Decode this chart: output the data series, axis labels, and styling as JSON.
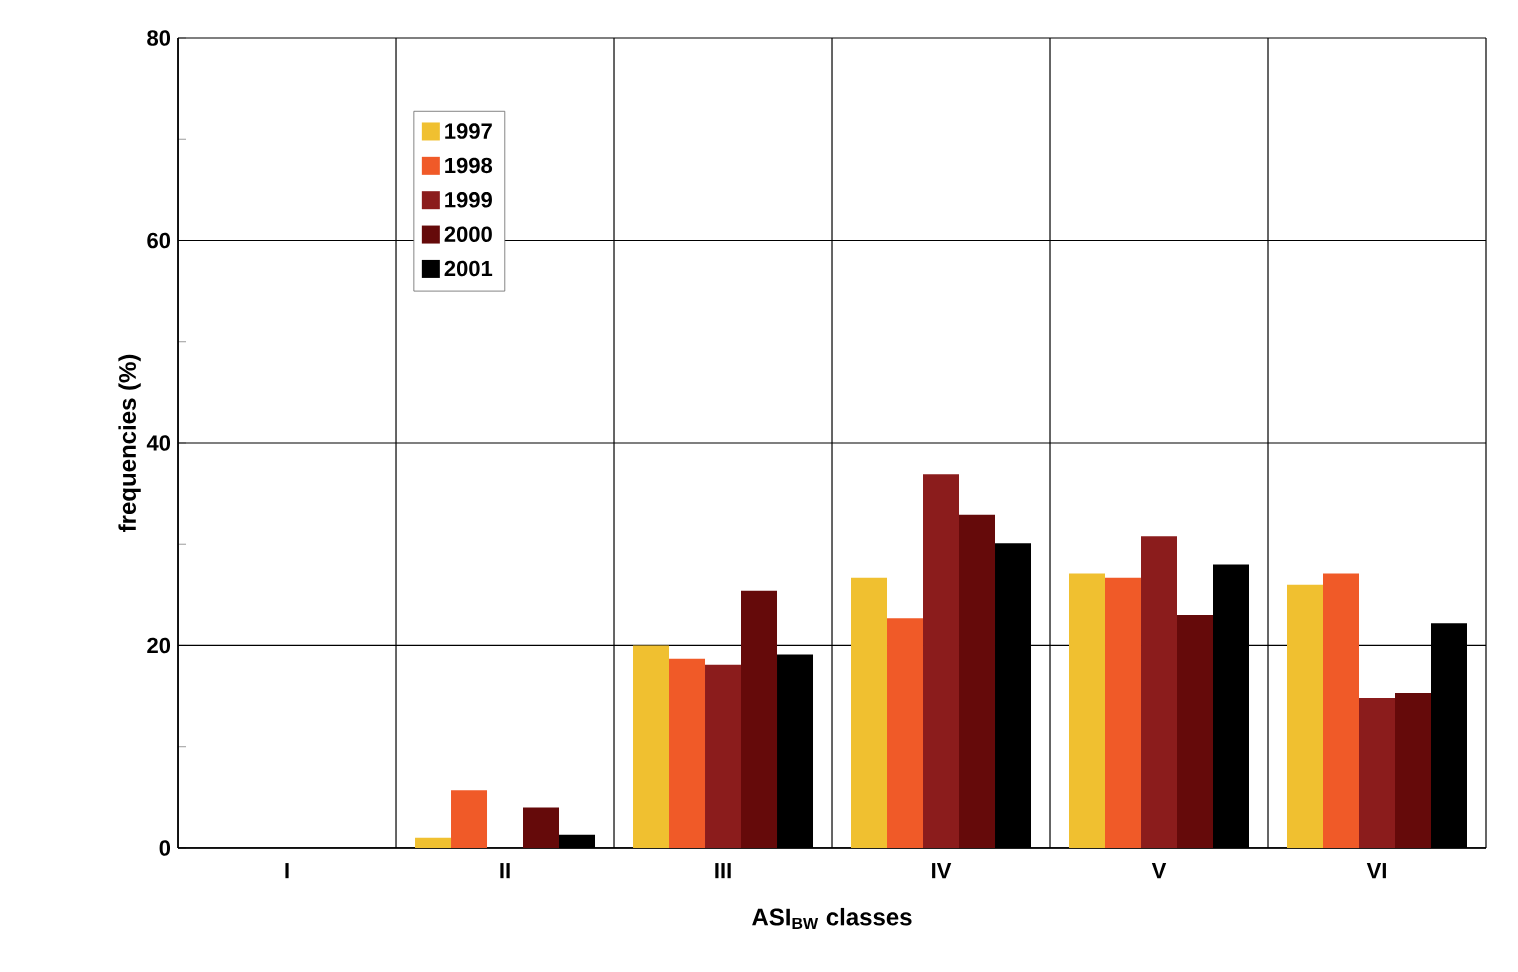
{
  "chart_data": {
    "type": "bar",
    "xlabel": "ASI$_{BW}$ classes",
    "ylabel": "frequencies    (%)",
    "categories": [
      "I",
      "II",
      "III",
      "IV",
      "V",
      "VI"
    ],
    "series": [
      {
        "name": "1997",
        "color": "#f0c030",
        "values": [
          0,
          1.0,
          20.0,
          26.7,
          27.1,
          26.0
        ]
      },
      {
        "name": "1998",
        "color": "#f05a28",
        "values": [
          0,
          5.7,
          18.7,
          22.7,
          26.7,
          27.1
        ]
      },
      {
        "name": "1999",
        "color": "#8b1c1c",
        "values": [
          0,
          0,
          18.1,
          36.9,
          30.8,
          14.8
        ]
      },
      {
        "name": "2000",
        "color": "#650a0a",
        "values": [
          0,
          4.0,
          25.4,
          32.9,
          23.0,
          15.3
        ]
      },
      {
        "name": "2001",
        "color": "#000000",
        "values": [
          0,
          1.3,
          19.1,
          30.1,
          28.0,
          22.2
        ]
      }
    ],
    "ylim": [
      0,
      80
    ],
    "yticks": [
      0,
      {
        "value": 10,
        "label": null
      },
      20,
      {
        "value": 30,
        "label": null
      },
      40,
      {
        "value": 50,
        "label": null
      },
      60,
      {
        "value": 70,
        "label": null
      },
      80
    ],
    "grid": true,
    "legend": "top left"
  }
}
